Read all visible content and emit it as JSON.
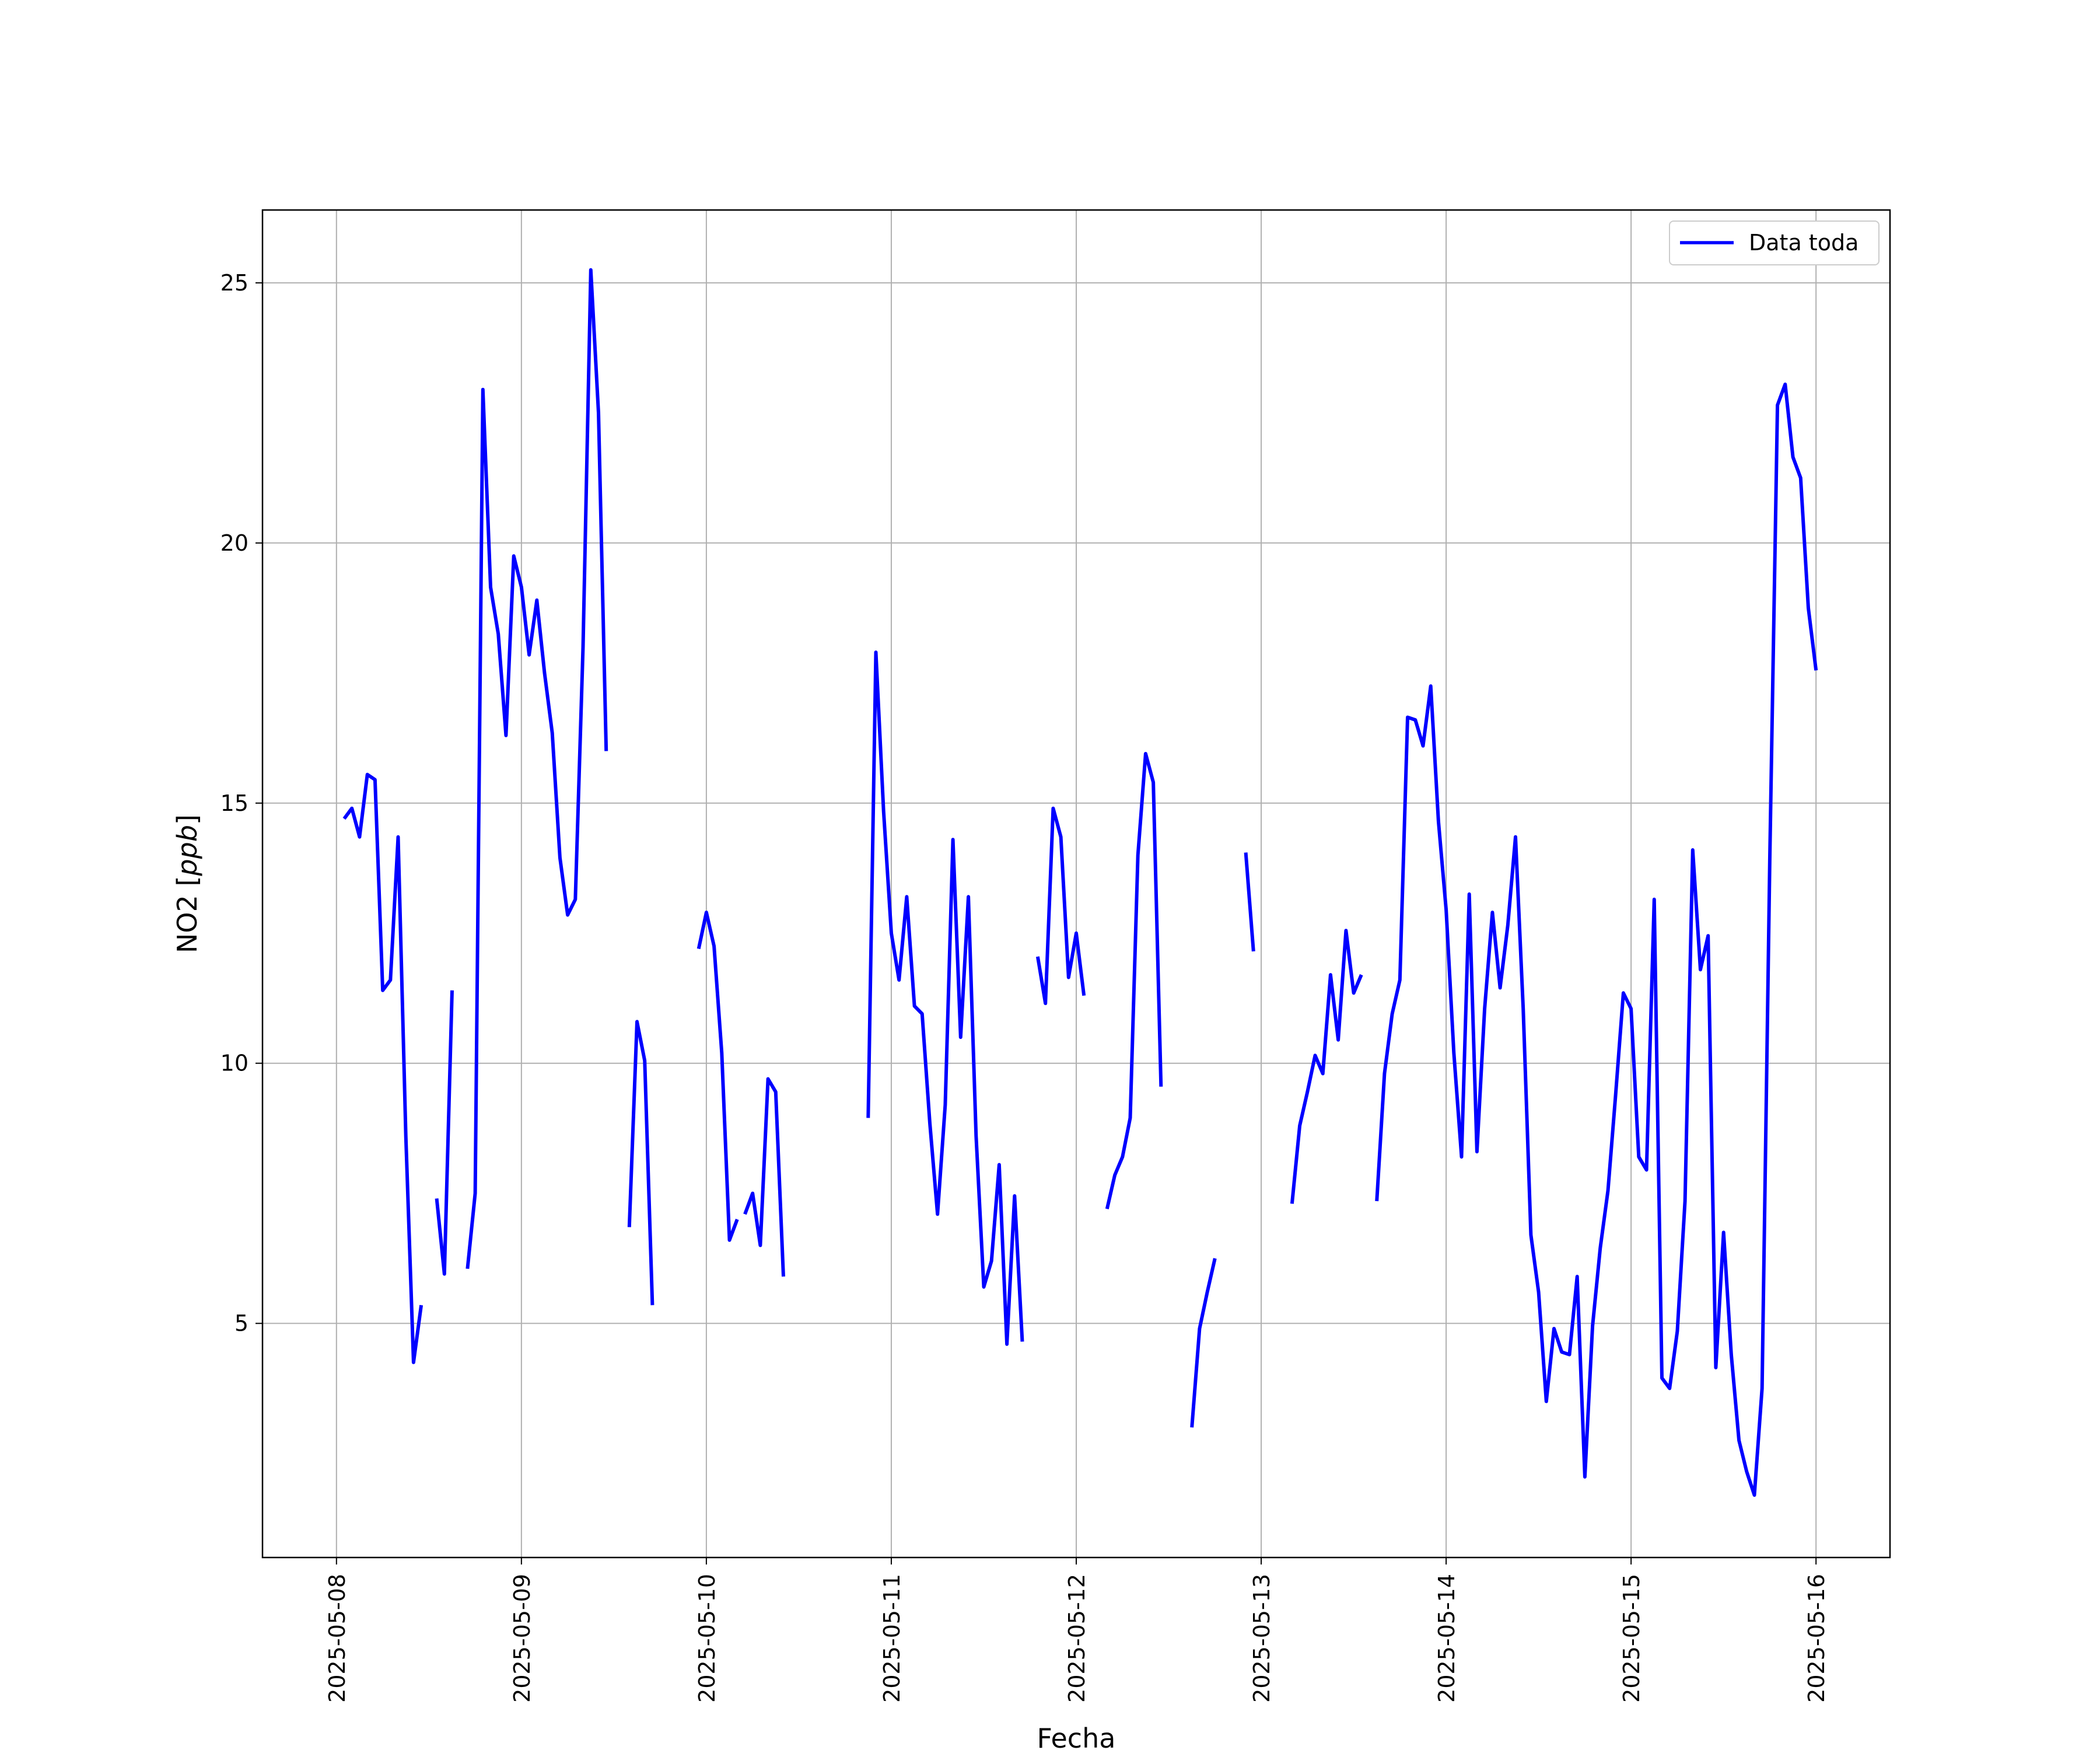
{
  "chart_data": {
    "type": "line",
    "xlabel": "Fecha",
    "ylabel_main": "NO2 [",
    "ylabel_unit": "ppb",
    "ylabel_close": "]",
    "x_ticks": [
      "2025-05-08",
      "2025-05-09",
      "2025-05-10",
      "2025-05-11",
      "2025-05-12",
      "2025-05-13",
      "2025-05-14",
      "2025-05-15",
      "2025-05-16"
    ],
    "y_ticks": [
      5,
      10,
      15,
      20,
      25
    ],
    "xlim": [
      "2025-05-07T14:24",
      "2025-05-16T09:36"
    ],
    "ylim": [
      0.5,
      26.4
    ],
    "grid": true,
    "legend_position": "top-right",
    "series": [
      {
        "name": "Data toda",
        "color": "#0000ff",
        "segments": [
          [
            [
              "2025-05-08T01:00",
              14.7
            ],
            [
              "2025-05-08T02:00",
              14.9
            ],
            [
              "2025-05-08T03:00",
              14.35
            ],
            [
              "2025-05-08T04:00",
              15.55
            ],
            [
              "2025-05-08T05:00",
              15.45
            ],
            [
              "2025-05-08T06:00",
              11.4
            ],
            [
              "2025-05-08T07:00",
              11.6
            ],
            [
              "2025-05-08T08:00",
              14.35
            ],
            [
              "2025-05-08T09:00",
              8.6
            ],
            [
              "2025-05-08T10:00",
              4.25
            ],
            [
              "2025-05-08T11:00",
              5.35
            ]
          ],
          [
            [
              "2025-05-08T13:00",
              7.4
            ],
            [
              "2025-05-08T14:00",
              5.95
            ],
            [
              "2025-05-08T15:00",
              11.4
            ]
          ],
          [
            [
              "2025-05-08T17:00",
              6.05
            ],
            [
              "2025-05-08T18:00",
              7.5
            ],
            [
              "2025-05-08T19:00",
              22.95
            ],
            [
              "2025-05-08T20:00",
              19.15
            ],
            [
              "2025-05-08T21:00",
              18.25
            ],
            [
              "2025-05-08T22:00",
              16.3
            ],
            [
              "2025-05-08T23:00",
              19.75
            ],
            [
              "2025-05-09T00:00",
              19.15
            ],
            [
              "2025-05-09T01:00",
              17.85
            ],
            [
              "2025-05-09T02:00",
              18.9
            ],
            [
              "2025-05-09T03:00",
              17.5
            ],
            [
              "2025-05-09T04:00",
              16.35
            ],
            [
              "2025-05-09T05:00",
              13.95
            ],
            [
              "2025-05-09T06:00",
              12.85
            ],
            [
              "2025-05-09T07:00",
              13.15
            ],
            [
              "2025-05-09T08:00",
              18.0
            ],
            [
              "2025-05-09T09:00",
              25.25
            ],
            [
              "2025-05-09T10:00",
              22.5
            ],
            [
              "2025-05-09T11:00",
              16.0
            ]
          ],
          [
            [
              "2025-05-09T14:00",
              6.85
            ],
            [
              "2025-05-09T15:00",
              10.8
            ],
            [
              "2025-05-09T16:00",
              10.05
            ],
            [
              "2025-05-09T17:00",
              5.35
            ]
          ],
          [
            [
              "2025-05-09T23:00",
              12.2
            ],
            [
              "2025-05-10T00:00",
              12.9
            ],
            [
              "2025-05-10T01:00",
              12.25
            ],
            [
              "2025-05-10T02:00",
              10.2
            ],
            [
              "2025-05-10T03:00",
              6.6
            ],
            [
              "2025-05-10T04:00",
              7.0
            ]
          ],
          [
            [
              "2025-05-10T05:00",
              7.1
            ],
            [
              "2025-05-10T06:00",
              7.5
            ],
            [
              "2025-05-10T07:00",
              6.5
            ],
            [
              "2025-05-10T08:00",
              9.7
            ],
            [
              "2025-05-10T09:00",
              9.45
            ],
            [
              "2025-05-10T10:00",
              5.9
            ]
          ],
          [
            [
              "2025-05-10T21:00",
              8.95
            ],
            [
              "2025-05-10T22:00",
              17.9
            ],
            [
              "2025-05-10T23:00",
              14.85
            ],
            [
              "2025-05-11T00:00",
              12.5
            ],
            [
              "2025-05-11T01:00",
              11.6
            ],
            [
              "2025-05-11T02:00",
              13.2
            ],
            [
              "2025-05-11T03:00",
              11.1
            ],
            [
              "2025-05-11T04:00",
              10.95
            ],
            [
              "2025-05-11T05:00",
              8.85
            ],
            [
              "2025-05-11T06:00",
              7.1
            ],
            [
              "2025-05-11T07:00",
              9.2
            ],
            [
              "2025-05-11T08:00",
              14.3
            ],
            [
              "2025-05-11T09:00",
              10.5
            ],
            [
              "2025-05-11T10:00",
              13.2
            ],
            [
              "2025-05-11T11:00",
              8.6
            ],
            [
              "2025-05-11T12:00",
              5.7
            ],
            [
              "2025-05-11T13:00",
              6.2
            ],
            [
              "2025-05-11T14:00",
              8.05
            ],
            [
              "2025-05-11T15:00",
              4.6
            ],
            [
              "2025-05-11T16:00",
              7.45
            ],
            [
              "2025-05-11T17:00",
              4.65
            ]
          ],
          [
            [
              "2025-05-11T19:00",
              12.05
            ],
            [
              "2025-05-11T20:00",
              11.15
            ],
            [
              "2025-05-11T21:00",
              14.9
            ],
            [
              "2025-05-11T22:00",
              14.35
            ],
            [
              "2025-05-11T23:00",
              11.65
            ],
            [
              "2025-05-12T00:00",
              12.5
            ],
            [
              "2025-05-12T01:00",
              11.3
            ]
          ],
          [
            [
              "2025-05-12T04:00",
              7.2
            ],
            [
              "2025-05-12T05:00",
              7.85
            ],
            [
              "2025-05-12T06:00",
              8.2
            ],
            [
              "2025-05-12T07:00",
              8.95
            ],
            [
              "2025-05-12T08:00",
              14.0
            ],
            [
              "2025-05-12T09:00",
              15.95
            ],
            [
              "2025-05-12T10:00",
              15.4
            ],
            [
              "2025-05-12T11:00",
              9.55
            ]
          ],
          [
            [
              "2025-05-12T15:00",
              3.0
            ],
            [
              "2025-05-12T16:00",
              4.9
            ],
            [
              "2025-05-12T17:00",
              5.6
            ],
            [
              "2025-05-12T18:00",
              6.25
            ]
          ],
          [
            [
              "2025-05-12T22:00",
              14.05
            ],
            [
              "2025-05-12T23:00",
              12.15
            ]
          ],
          [
            [
              "2025-05-13T04:00",
              7.3
            ],
            [
              "2025-05-13T05:00",
              8.8
            ],
            [
              "2025-05-13T06:00",
              9.45
            ],
            [
              "2025-05-13T07:00",
              10.15
            ],
            [
              "2025-05-13T08:00",
              9.8
            ],
            [
              "2025-05-13T09:00",
              11.7
            ],
            [
              "2025-05-13T10:00",
              10.45
            ],
            [
              "2025-05-13T11:00",
              12.55
            ],
            [
              "2025-05-13T12:00",
              11.35
            ],
            [
              "2025-05-13T13:00",
              11.7
            ]
          ],
          [
            [
              "2025-05-13T15:00",
              7.35
            ],
            [
              "2025-05-13T16:00",
              9.8
            ],
            [
              "2025-05-13T17:00",
              10.95
            ],
            [
              "2025-05-13T18:00",
              11.6
            ],
            [
              "2025-05-13T19:00",
              16.65
            ],
            [
              "2025-05-13T20:00",
              16.6
            ],
            [
              "2025-05-13T21:00",
              16.1
            ],
            [
              "2025-05-13T22:00",
              17.25
            ],
            [
              "2025-05-13T23:00",
              14.65
            ],
            [
              "2025-05-14T00:00",
              12.95
            ],
            [
              "2025-05-14T01:00",
              10.2
            ],
            [
              "2025-05-14T02:00",
              8.2
            ],
            [
              "2025-05-14T03:00",
              13.25
            ],
            [
              "2025-05-14T04:00",
              8.3
            ],
            [
              "2025-05-14T05:00",
              11.05
            ],
            [
              "2025-05-14T06:00",
              12.9
            ],
            [
              "2025-05-14T07:00",
              11.45
            ],
            [
              "2025-05-14T08:00",
              12.65
            ],
            [
              "2025-05-14T09:00",
              14.35
            ],
            [
              "2025-05-14T10:00",
              11.05
            ],
            [
              "2025-05-14T11:00",
              6.7
            ],
            [
              "2025-05-14T12:00",
              5.6
            ],
            [
              "2025-05-14T13:00",
              3.5
            ],
            [
              "2025-05-14T14:00",
              4.9
            ],
            [
              "2025-05-14T15:00",
              4.45
            ],
            [
              "2025-05-14T16:00",
              4.4
            ],
            [
              "2025-05-14T17:00",
              5.9
            ],
            [
              "2025-05-14T18:00",
              2.05
            ],
            [
              "2025-05-14T19:00",
              4.95
            ],
            [
              "2025-05-14T20:00",
              6.45
            ],
            [
              "2025-05-14T21:00",
              7.55
            ],
            [
              "2025-05-14T22:00",
              9.4
            ],
            [
              "2025-05-14T23:00",
              11.35
            ],
            [
              "2025-05-15T00:00",
              11.05
            ],
            [
              "2025-05-15T01:00",
              8.2
            ],
            [
              "2025-05-15T02:00",
              7.95
            ],
            [
              "2025-05-15T03:00",
              13.15
            ],
            [
              "2025-05-15T04:00",
              3.95
            ],
            [
              "2025-05-15T05:00",
              3.75
            ],
            [
              "2025-05-15T06:00",
              4.85
            ],
            [
              "2025-05-15T07:00",
              7.35
            ],
            [
              "2025-05-15T08:00",
              14.1
            ],
            [
              "2025-05-15T09:00",
              11.8
            ],
            [
              "2025-05-15T10:00",
              12.45
            ],
            [
              "2025-05-15T11:00",
              4.15
            ],
            [
              "2025-05-15T12:00",
              6.75
            ],
            [
              "2025-05-15T13:00",
              4.4
            ],
            [
              "2025-05-15T14:00",
              2.75
            ],
            [
              "2025-05-15T15:00",
              2.15
            ],
            [
              "2025-05-15T16:00",
              1.7
            ],
            [
              "2025-05-15T17:00",
              3.75
            ],
            [
              "2025-05-15T18:00",
              13.9
            ],
            [
              "2025-05-15T19:00",
              22.65
            ],
            [
              "2025-05-15T20:00",
              23.05
            ],
            [
              "2025-05-15T21:00",
              21.65
            ],
            [
              "2025-05-15T22:00",
              21.25
            ],
            [
              "2025-05-15T23:00",
              18.75
            ],
            [
              "2025-05-16T00:00",
              17.55
            ]
          ]
        ]
      }
    ]
  }
}
